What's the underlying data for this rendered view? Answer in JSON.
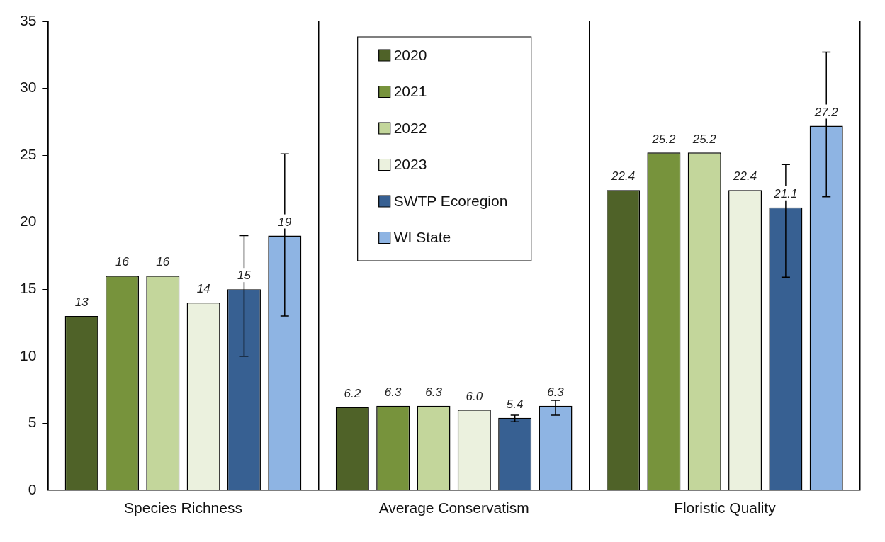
{
  "chart_data": {
    "type": "bar",
    "categories": [
      "Species Richness",
      "Average Conservatism",
      "Floristic Quality"
    ],
    "series": [
      {
        "name": "2020",
        "color": "#4f6228",
        "values": [
          13,
          6.2,
          22.4
        ],
        "value_labels": [
          "13",
          "6.2",
          "22.4"
        ]
      },
      {
        "name": "2021",
        "color": "#77933c",
        "values": [
          16,
          6.3,
          25.2
        ],
        "value_labels": [
          "16",
          "6.3",
          "25.2"
        ]
      },
      {
        "name": "2022",
        "color": "#c3d69b",
        "values": [
          16,
          6.3,
          25.2
        ],
        "value_labels": [
          "16",
          "6.3",
          "25.2"
        ]
      },
      {
        "name": "2023",
        "color": "#ebf1de",
        "values": [
          14,
          6.0,
          22.4
        ],
        "value_labels": [
          "14",
          "6.0",
          "22.4"
        ]
      },
      {
        "name": "SWTP Ecoregion",
        "color": "#376092",
        "values": [
          15,
          5.4,
          21.1
        ],
        "value_labels": [
          "15",
          "5.4",
          "21.1"
        ],
        "errors": [
          [
            10,
            19
          ],
          [
            5.1,
            5.6
          ],
          [
            15.9,
            24.3
          ]
        ]
      },
      {
        "name": "WI State",
        "color": "#8eb4e3",
        "values": [
          19,
          6.3,
          27.2
        ],
        "value_labels": [
          "19",
          "6.3",
          "27.2"
        ],
        "errors": [
          [
            13,
            25.1
          ],
          [
            5.6,
            6.7
          ],
          [
            21.9,
            32.7
          ]
        ]
      }
    ],
    "ylim": [
      0,
      35
    ],
    "yticks": [
      0,
      5,
      10,
      15,
      20,
      25,
      30,
      35
    ],
    "grid": "x",
    "legend": "top"
  }
}
